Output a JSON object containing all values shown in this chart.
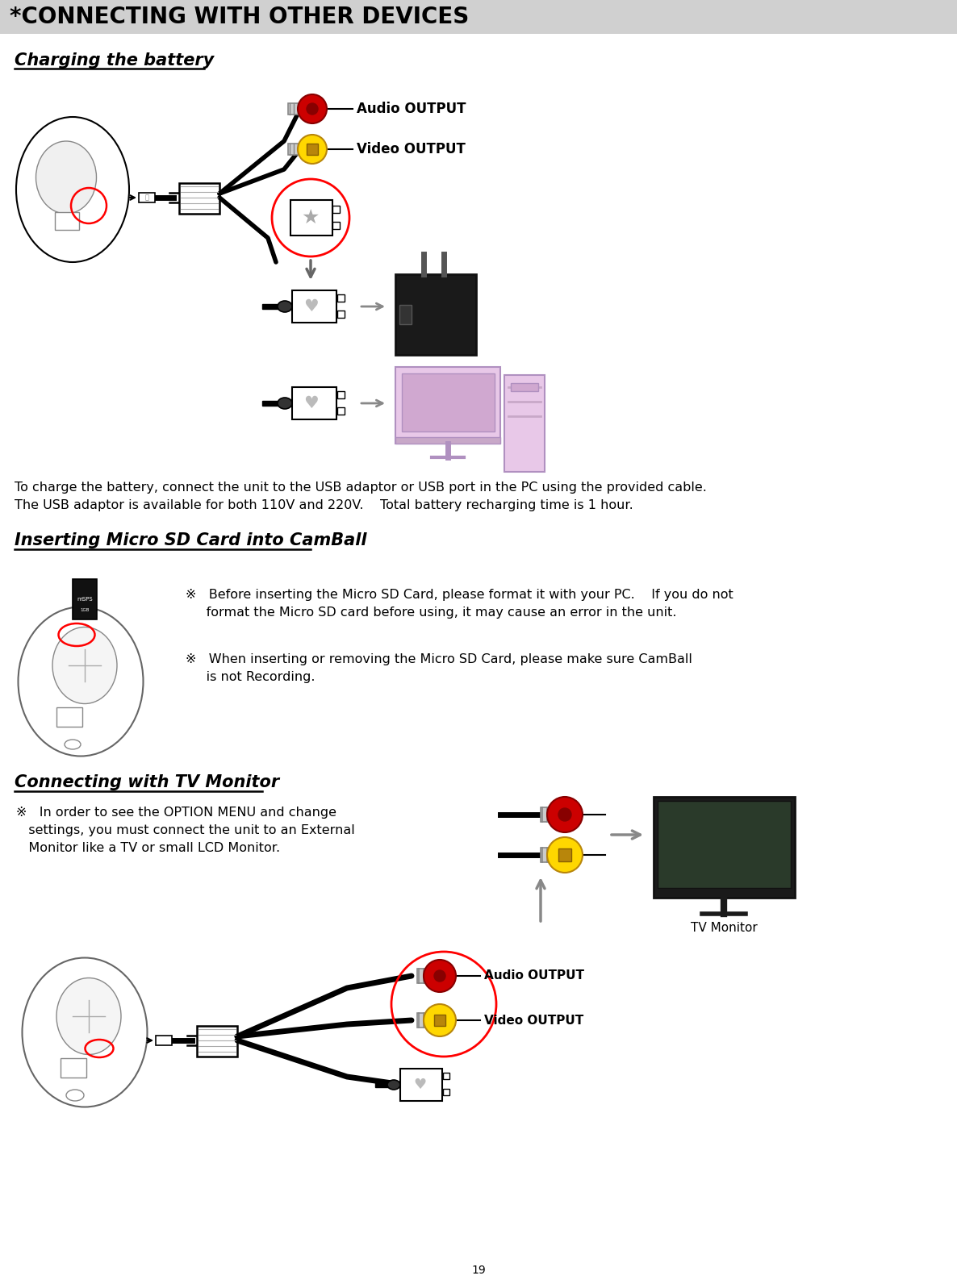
{
  "page_title": "*CONNECTING WITH OTHER DEVICES",
  "page_number": "19",
  "section1_title": "Charging the battery",
  "section1_text1": "To charge the battery, connect the unit to the USB adaptor or USB port in the PC using the provided cable.",
  "section1_text2": "The USB adaptor is available for both 110V and 220V.    Total battery recharging time is 1 hour.",
  "section2_title": "Inserting Micro SD Card into CamBall",
  "section2_bullet1_a": "※   Before inserting the Micro SD Card, please format it with your PC.    If you do not",
  "section2_bullet1_b": "     format the Micro SD card before using, it may cause an error in the unit.",
  "section2_bullet2_a": "※   When inserting or removing the Micro SD Card, please make sure CamBall",
  "section2_bullet2_b": "     is not Recording.",
  "section3_title": "Connecting with TV Monitor",
  "section3_bullet_a": "※   In order to see the OPTION MENU and change",
  "section3_bullet_b": "   settings, you must connect the unit to an External",
  "section3_bullet_c": "   Monitor like a TV or small LCD Monitor.",
  "section3_tv_label": "TV Monitor",
  "audio_output_label": "Audio OUTPUT",
  "video_output_label": "Video OUTPUT",
  "title_bg_color": "#d0d0d0",
  "body_bg_color": "#ffffff"
}
